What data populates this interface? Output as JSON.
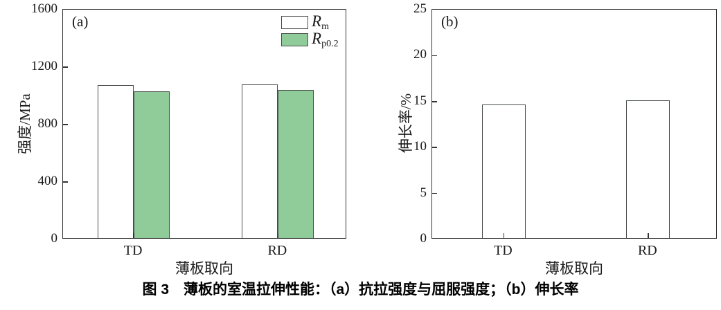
{
  "caption": "图 3　薄板的室温拉伸性能：（a）抗拉强度与屈服强度；（b）伸长率",
  "colors": {
    "axis": "#333333",
    "bar_border": "#474c48",
    "bar_white": "#ffffff",
    "bar_green": "#8fcc99",
    "text": "#1a1a1a"
  },
  "chart_data": [
    {
      "type": "bar",
      "panel_label": "(a)",
      "xlabel": "薄板取向",
      "ylabel": "强度/MPa",
      "categories": [
        "TD",
        "RD"
      ],
      "series": [
        {
          "name": "Rm",
          "legend_main": "R",
          "legend_sub": "m",
          "color": "#ffffff",
          "values": [
            1065,
            1070
          ]
        },
        {
          "name": "Rp0.2",
          "legend_main": "R",
          "legend_sub": "p0.2",
          "color": "#8fcc99",
          "values": [
            1020,
            1030
          ]
        }
      ],
      "ylim": [
        0,
        1600
      ],
      "yticks": [
        0,
        400,
        800,
        1200,
        1600
      ],
      "legend_position": "top-right",
      "grid": false
    },
    {
      "type": "bar",
      "panel_label": "(b)",
      "xlabel": "薄板取向",
      "ylabel": "伸长率/%",
      "categories": [
        "TD",
        "RD"
      ],
      "series": [
        {
          "name": "elongation",
          "color": "#ffffff",
          "values": [
            14.5,
            15.0
          ]
        }
      ],
      "ylim": [
        0,
        25
      ],
      "yticks": [
        0,
        5,
        10,
        15,
        20,
        25
      ],
      "legend_position": "none",
      "grid": false
    }
  ]
}
